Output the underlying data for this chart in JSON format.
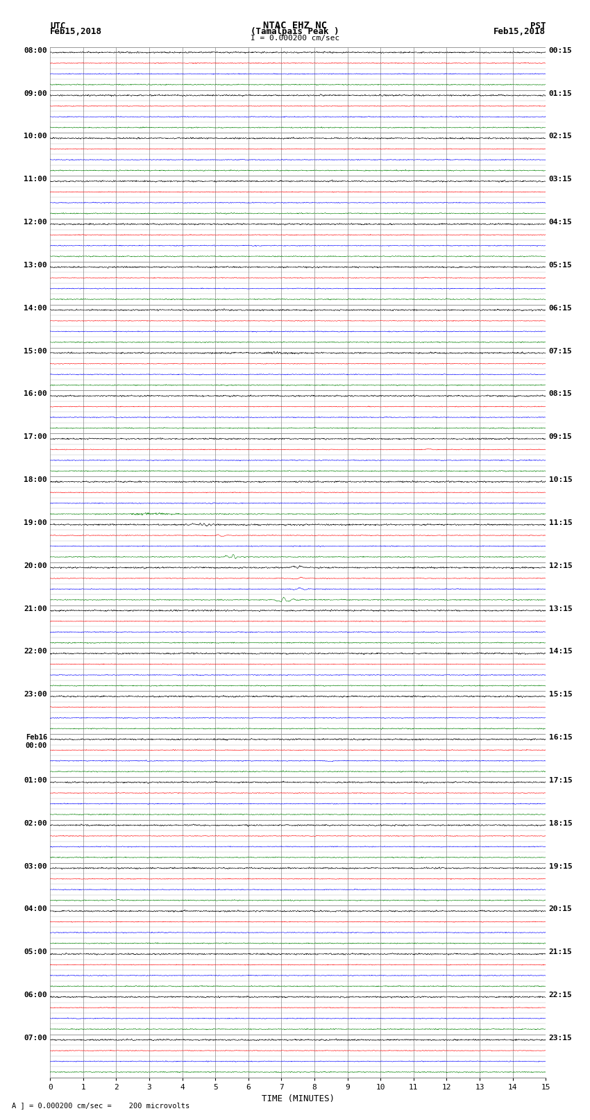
{
  "title_line1": "NTAC EHZ NC",
  "title_line2": "(Tamalpais Peak )",
  "scale_label": "I = 0.000200 cm/sec",
  "left_label_line1": "UTC",
  "left_label_line2": "Feb15,2018",
  "right_label_line1": "PST",
  "right_label_line2": "Feb15,2018",
  "bottom_label": "TIME (MINUTES)",
  "footnote": "A ] = 0.000200 cm/sec =    200 microvolts",
  "colors": [
    "black",
    "red",
    "blue",
    "green"
  ],
  "bg_color": "white",
  "grid_color": "#999999",
  "fig_width": 8.5,
  "fig_height": 16.13,
  "num_hour_groups": 24,
  "traces_per_group": 4,
  "xmin": 0,
  "xmax": 15,
  "xticks": [
    0,
    1,
    2,
    3,
    4,
    5,
    6,
    7,
    8,
    9,
    10,
    11,
    12,
    13,
    14,
    15
  ],
  "noise_amp": 0.025,
  "left_utc_times": [
    "08:00",
    "09:00",
    "10:00",
    "11:00",
    "12:00",
    "13:00",
    "14:00",
    "15:00",
    "16:00",
    "17:00",
    "18:00",
    "19:00",
    "20:00",
    "21:00",
    "22:00",
    "23:00",
    "Feb16\n00:00",
    "01:00",
    "02:00",
    "03:00",
    "04:00",
    "05:00",
    "06:00",
    "07:00"
  ],
  "right_pst_times": [
    "00:15",
    "01:15",
    "02:15",
    "03:15",
    "04:15",
    "05:15",
    "06:15",
    "07:15",
    "08:15",
    "09:15",
    "10:15",
    "11:15",
    "12:15",
    "13:15",
    "14:15",
    "15:15",
    "16:15",
    "17:15",
    "18:15",
    "19:15",
    "20:15",
    "21:15",
    "22:15",
    "23:15"
  ]
}
